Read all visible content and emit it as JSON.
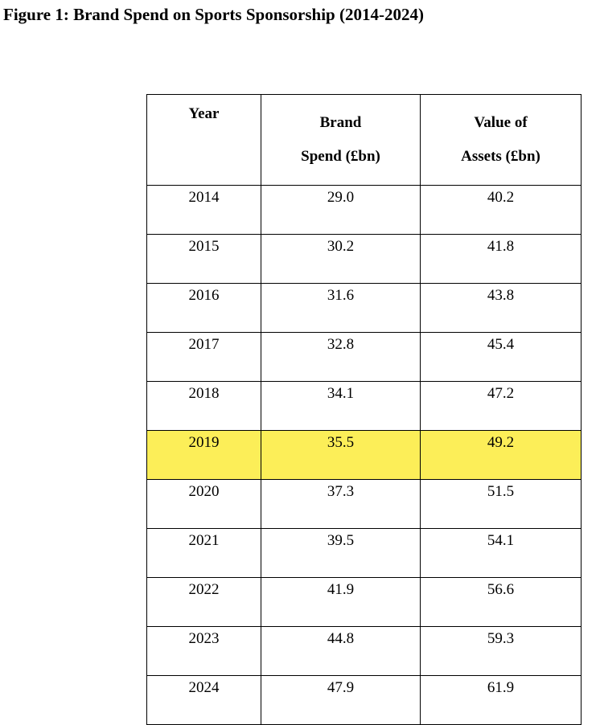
{
  "title": "Figure 1: Brand Spend on Sports Sponsorship (2014-2024)",
  "highlight_color": "#fcee58",
  "chart_data": {
    "type": "table",
    "title": "Figure 1: Brand Spend on Sports Sponsorship (2014-2024)",
    "columns": [
      {
        "key": "year",
        "lines": [
          "Year"
        ]
      },
      {
        "key": "brand_spend",
        "lines": [
          "Brand",
          "Spend (£bn)"
        ]
      },
      {
        "key": "asset_value",
        "lines": [
          "Value of",
          "Assets (£bn)"
        ]
      }
    ],
    "highlighted_year": "2019",
    "rows": [
      [
        "2014",
        "29.0",
        "40.2"
      ],
      [
        "2015",
        "30.2",
        "41.8"
      ],
      [
        "2016",
        "31.6",
        "43.8"
      ],
      [
        "2017",
        "32.8",
        "45.4"
      ],
      [
        "2018",
        "34.1",
        "47.2"
      ],
      [
        "2019",
        "35.5",
        "49.2"
      ],
      [
        "2020",
        "37.3",
        "51.5"
      ],
      [
        "2021",
        "39.5",
        "54.1"
      ],
      [
        "2022",
        "41.9",
        "56.6"
      ],
      [
        "2023",
        "44.8",
        "59.3"
      ],
      [
        "2024",
        "47.9",
        "61.9"
      ]
    ]
  }
}
